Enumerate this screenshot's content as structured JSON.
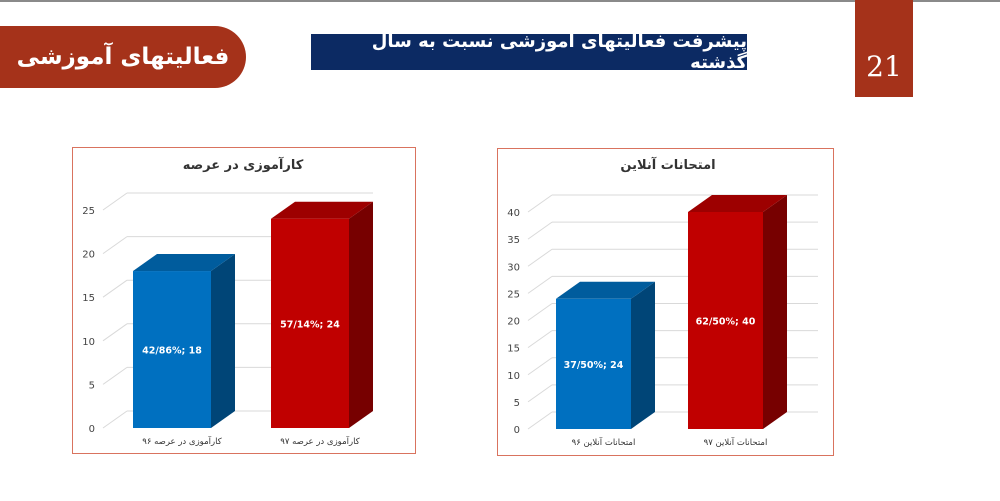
{
  "header": {
    "section": "فعالیتهای آموزشی",
    "title": "پیشرفت فعالیتهای آموزشی نسبت به سال گذشته",
    "page_number": "21"
  },
  "colors": {
    "accent": "#a5321a",
    "title_bg": "#0c2a63",
    "series_prev": "#0070c0",
    "series_curr": "#c00000"
  },
  "chart_data": [
    {
      "type": "bar",
      "title": "کارآموزی در عرصه",
      "categories": [
        "کارآموزی در عرصه ۹۶",
        "کارآموزی در عرصه ۹۷"
      ],
      "values": [
        18,
        24
      ],
      "data_labels": [
        "42/86%; 18",
        "57/14%; 24"
      ],
      "ylim": [
        0,
        25
      ],
      "yticks": [
        0,
        5,
        10,
        15,
        20,
        25
      ],
      "grid": true
    },
    {
      "type": "bar",
      "title": "امتحانات آنلاین",
      "categories": [
        "امتحانات آنلاین ۹۶",
        "امتحانات آنلاین ۹۷"
      ],
      "values": [
        24,
        40
      ],
      "data_labels": [
        "37/50%; 24",
        "62/50%; 40"
      ],
      "ylim": [
        0,
        40
      ],
      "yticks": [
        0,
        5,
        10,
        15,
        20,
        25,
        30,
        35,
        40
      ],
      "grid": true
    }
  ]
}
